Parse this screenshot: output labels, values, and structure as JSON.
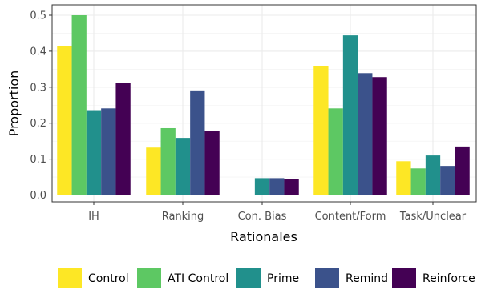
{
  "chart_data": {
    "type": "bar",
    "xlabel": "Rationales",
    "ylabel": "Proportion",
    "ylim": [
      0,
      0.52
    ],
    "yticks": [
      0.0,
      0.1,
      0.2,
      0.3,
      0.4,
      0.5
    ],
    "ytick_labels": [
      "0.0",
      "0.1",
      "0.2",
      "0.3",
      "0.4",
      "0.5"
    ],
    "grid": true,
    "legend_position": "bottom",
    "categories": [
      "IH",
      "Ranking",
      "Con. Bias",
      "Content/Form",
      "Task/Unclear"
    ],
    "series": [
      {
        "name": "Control",
        "color": "#FDE725",
        "values": [
          0.415,
          0.132,
          0.0,
          0.358,
          0.094
        ]
      },
      {
        "name": "ATI Control",
        "color": "#5DC863",
        "values": [
          0.5,
          0.186,
          0.0,
          0.241,
          0.074
        ]
      },
      {
        "name": "Prime",
        "color": "#21908C",
        "values": [
          0.236,
          0.159,
          0.047,
          0.444,
          0.11
        ]
      },
      {
        "name": "Remind",
        "color": "#3B528B",
        "values": [
          0.241,
          0.291,
          0.047,
          0.339,
          0.081
        ]
      },
      {
        "name": "Reinforce",
        "color": "#440154",
        "values": [
          0.312,
          0.178,
          0.045,
          0.328,
          0.135
        ]
      }
    ]
  }
}
